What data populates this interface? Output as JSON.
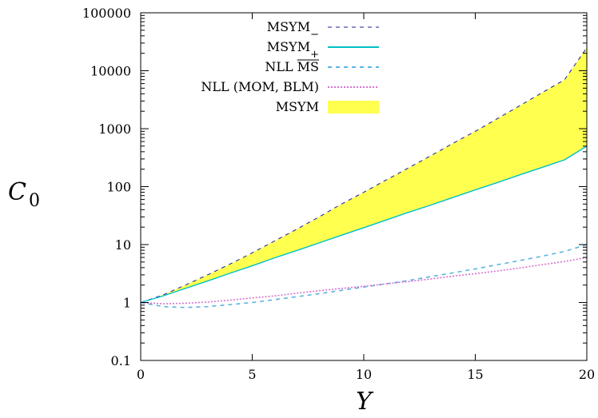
{
  "chart_data": {
    "type": "line",
    "title": "",
    "xlabel": "Y",
    "ylabel": "C",
    "ylabel_subscript": "0",
    "xlim": [
      0,
      20
    ],
    "ylim": [
      0.1,
      100000
    ],
    "yscale": "log",
    "grid": false,
    "legend_position": "top-center",
    "x_ticks": [
      0,
      5,
      10,
      15,
      20
    ],
    "x_tick_labels": [
      "0",
      "5",
      "10",
      "15",
      "20"
    ],
    "y_ticks": [
      0.1,
      1,
      10,
      100,
      1000,
      10000,
      100000
    ],
    "y_tick_labels": [
      "0.1",
      "1",
      "10",
      "100",
      "1000",
      "10000",
      "100000"
    ],
    "x": [
      0,
      1,
      2,
      3,
      4,
      5,
      6,
      7,
      8,
      9,
      10,
      11,
      12,
      13,
      14,
      15,
      16,
      17,
      18,
      19,
      20
    ],
    "series": [
      {
        "name": "MSYM",
        "name_subscript": "−",
        "color": "#1a1aa0",
        "style": "dashed",
        "values": [
          1.0,
          1.35,
          2.0,
          3.0,
          4.6,
          7.2,
          11.5,
          18.5,
          30,
          50,
          80,
          130,
          210,
          340,
          560,
          900,
          1500,
          2500,
          4200,
          7000,
          25000
        ]
      },
      {
        "name": "MSYM",
        "name_subscript": "+",
        "color": "#00bfc8",
        "style": "solid",
        "values": [
          1.0,
          1.3,
          1.75,
          2.35,
          3.2,
          4.3,
          5.9,
          7.9,
          10.7,
          14.5,
          19.5,
          26.5,
          36,
          48,
          65,
          88,
          118,
          160,
          215,
          290,
          500
        ]
      },
      {
        "name": "NLL MS",
        "name_overline": "MS",
        "color": "#5ab4e0",
        "style": "dashed",
        "values": [
          1.0,
          0.85,
          0.82,
          0.85,
          0.92,
          1.0,
          1.12,
          1.26,
          1.42,
          1.62,
          1.85,
          2.1,
          2.4,
          2.8,
          3.25,
          3.8,
          4.5,
          5.3,
          6.3,
          7.6,
          10
        ]
      },
      {
        "name": "NLL (MOM, BLM)",
        "color": "#d870d0",
        "style": "dotted",
        "values": [
          1.0,
          0.95,
          0.97,
          1.02,
          1.1,
          1.2,
          1.3,
          1.45,
          1.6,
          1.75,
          1.9,
          2.1,
          2.3,
          2.55,
          2.85,
          3.15,
          3.5,
          3.95,
          4.5,
          5.1,
          6.0
        ]
      }
    ],
    "band": {
      "name": "MSYM",
      "color": "#ffff50",
      "lower_series": 1,
      "upper_series": 0
    }
  }
}
